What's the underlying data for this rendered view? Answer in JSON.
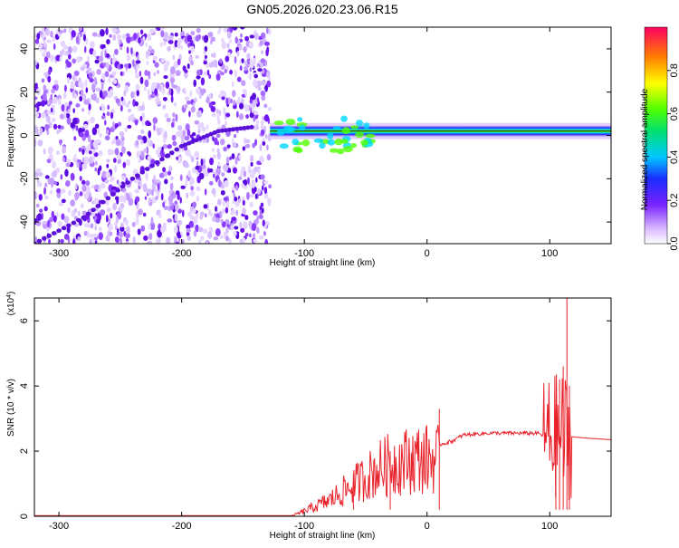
{
  "chart_data": [
    {
      "type": "heatmap",
      "title": "GN05.2026.020.23.06.R15",
      "xlabel": "Height of straight line (km)",
      "ylabel": "Frequency (Hz)",
      "xlim": [
        -320,
        150
      ],
      "ylim": [
        -50,
        50
      ],
      "xticks": [
        "-300",
        "-200",
        "-100",
        "0",
        "100"
      ],
      "yticks": [
        "-40",
        "-20",
        "0",
        "20",
        "40"
      ],
      "colorbar": {
        "label": "Normalized spectral amplitude",
        "range": [
          0,
          1
        ],
        "ticks": [
          "0.0",
          "0.2",
          "0.4",
          "0.6",
          "0.8"
        ]
      },
      "features": {
        "noise_region_x": [
          -320,
          -128
        ],
        "diagonal_track": [
          [
            -320,
            -50
          ],
          [
            -280,
            -38
          ],
          [
            -240,
            -20
          ],
          [
            -200,
            -5
          ],
          [
            -170,
            2
          ],
          [
            -140,
            4
          ]
        ],
        "signal_band_x": [
          -128,
          150
        ],
        "signal_frequency_hz": 2
      }
    },
    {
      "type": "line",
      "xlabel": "Height of straight line (km)",
      "ylabel": "SNR (10 * v/v)",
      "y_multiplier": "(x10",
      "y_multiplier_exp": "4",
      "xlim": [
        -320,
        150
      ],
      "ylim": [
        0,
        6.7
      ],
      "xticks": [
        "-300",
        "-200",
        "-100",
        "0",
        "100"
      ],
      "yticks": [
        "0",
        "2",
        "4",
        "6"
      ],
      "series": [
        {
          "color": "#e8232b",
          "points": [
            [
              -320,
              0.02
            ],
            [
              -110,
              0.02
            ],
            [
              -100,
              0.2
            ],
            [
              -90,
              0.4
            ],
            [
              -80,
              0.6
            ],
            [
              -70,
              0.9
            ],
            [
              -60,
              1.2
            ],
            [
              -50,
              1.5
            ],
            [
              -40,
              1.8
            ],
            [
              -30,
              2.0
            ],
            [
              -20,
              2.1
            ],
            [
              -10,
              2.2
            ],
            [
              10,
              2.2
            ],
            [
              20,
              2.3
            ],
            [
              30,
              2.5
            ],
            [
              50,
              2.55
            ],
            [
              70,
              2.55
            ],
            [
              90,
              2.55
            ],
            [
              100,
              2.4
            ],
            [
              110,
              2.5
            ],
            [
              115,
              2.45
            ],
            [
              130,
              2.4
            ],
            [
              150,
              2.35
            ]
          ],
          "spikes": [
            [
              -60,
              1.3
            ],
            [
              -30,
              2.0
            ],
            [
              10,
              3.3
            ],
            [
              105,
              3.3
            ],
            [
              108,
              4.2
            ],
            [
              111,
              4.6
            ],
            [
              114,
              6.7
            ],
            [
              116,
              4.0
            ]
          ]
        }
      ]
    }
  ]
}
